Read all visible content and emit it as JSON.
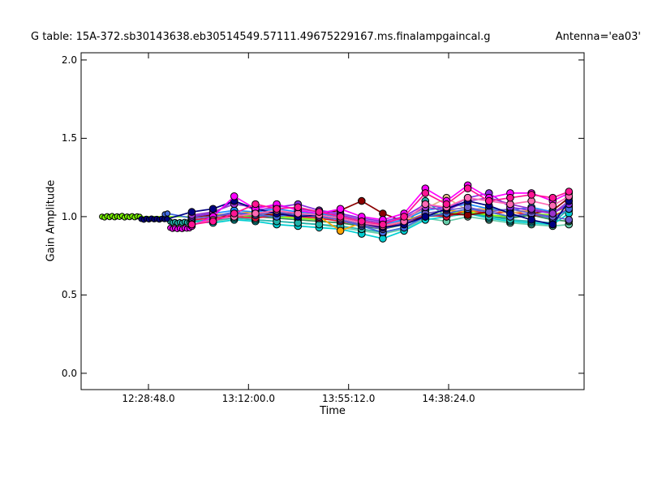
{
  "figure": {
    "title_left": "G table: 15A-372.sb30143638.eb30514549.57111.49675229167.ms.finalampgaincal.g",
    "title_right": "Antenna='ea03'",
    "background": "#ffffff",
    "frame_color": "#000000"
  },
  "chart_data": {
    "type": "line",
    "title": "G table: 15A-372.sb30143638.eb30514549.57111.49675229167.ms.finalampgaincal.g     Antenna='ea03'",
    "xlabel": "Time",
    "ylabel": "Gain Amplitude",
    "grid": false,
    "legend": "none",
    "x_axis": {
      "unit": "seconds after 12:00:00",
      "range": [
        -17,
        13014
      ],
      "ticks": [
        {
          "t": 1728,
          "label": "12:28:48.0"
        },
        {
          "t": 4320,
          "label": "13:12:00.0"
        },
        {
          "t": 6912,
          "label": "13:55:12.0"
        },
        {
          "t": 9504,
          "label": "14:38:24.0"
        }
      ]
    },
    "y_axis": {
      "range": [
        -0.104,
        2.046
      ],
      "ticks": [
        {
          "v": 0.0,
          "label": "0.0"
        },
        {
          "v": 0.5,
          "label": "0.5"
        },
        {
          "v": 1.0,
          "label": "1.0"
        },
        {
          "v": 1.5,
          "label": "1.5"
        },
        {
          "v": 2.0,
          "label": "2.0"
        }
      ]
    },
    "marker": {
      "shape": "circle",
      "edge": "#000000",
      "edge_width": 1,
      "radius": 4.3,
      "radius_dense": 3.2
    },
    "line_width": 1.7,
    "t_main": [
      2850,
      3400,
      3950,
      4500,
      5050,
      5600,
      6150,
      6700,
      7250,
      7800,
      8350,
      8900,
      9450,
      10000,
      10550,
      11100,
      11650,
      12200,
      12620
    ],
    "series": [
      {
        "name": "mediumaquamarine",
        "color": "#66CDAA",
        "y": [
          0.98,
          0.97,
          0.99,
          0.98,
          0.97,
          0.96,
          0.95,
          0.93,
          0.91,
          0.89,
          0.92,
          0.99,
          0.97,
          1.0,
          0.98,
          0.96,
          0.95,
          0.94,
          0.95
        ]
      },
      {
        "name": "seagreen",
        "color": "#2E8B57",
        "y": [
          0.99,
          1.0,
          1.01,
          1.0,
          0.99,
          0.98,
          0.97,
          0.96,
          0.94,
          0.92,
          0.95,
          1.0,
          1.01,
          1.03,
          1.0,
          0.99,
          1.01,
          0.98,
          0.97
        ]
      },
      {
        "name": "lawngreen",
        "color": "#7CFC00",
        "prefix_x": [
          525,
          590,
          655,
          720,
          785,
          850,
          915,
          980,
          1045,
          1110,
          1175,
          1240,
          1305,
          1370,
          1435,
          1500
        ],
        "prefix_y": [
          1.0,
          0.995,
          1.003,
          0.997,
          1.004,
          0.996,
          1.002,
          0.998,
          1.005,
          0.995,
          1.001,
          0.997,
          1.003,
          0.996,
          1.002,
          0.999
        ],
        "y": [
          1.0,
          1.01,
          1.0,
          1.01,
          1.0,
          0.99,
          0.98,
          0.99,
          0.96,
          0.94,
          0.97,
          1.01,
          1.02,
          1.03,
          1.01,
          1.0,
          1.02,
          1.01,
          1.04
        ]
      },
      {
        "name": "darkturquoise",
        "color": "#00CED1",
        "y": [
          0.97,
          0.96,
          0.98,
          0.97,
          0.95,
          0.94,
          0.93,
          0.92,
          0.89,
          0.86,
          0.91,
          0.98,
          1.0,
          1.02,
          0.99,
          0.97,
          0.96,
          0.95,
          1.02
        ]
      },
      {
        "name": "lightseagreen",
        "color": "#20B2AA",
        "prefix_x": [
          2290,
          2352,
          2414,
          2476,
          2538,
          2600,
          2662,
          2724,
          2790
        ],
        "prefix_y": [
          0.968,
          0.962,
          0.966,
          0.96,
          0.965,
          0.961,
          0.967,
          0.963,
          0.965
        ],
        "y": [
          0.97,
          0.98,
          0.99,
          0.98,
          0.97,
          0.96,
          0.95,
          0.94,
          0.92,
          0.9,
          0.93,
          1.1,
          1.0,
          1.02,
          1.0,
          0.98,
          0.97,
          0.96,
          1.05
        ]
      },
      {
        "name": "crimson",
        "color": "#DC143C",
        "y": [
          0.98,
          0.99,
          1.0,
          0.99,
          1.01,
          1.0,
          0.99,
          0.97,
          0.95,
          0.93,
          0.96,
          1.01,
          1.0,
          1.04,
          1.02,
          1.03,
          1.01,
          1.0,
          1.05
        ]
      },
      {
        "name": "orange",
        "color": "#FFA500",
        "y": [
          1.0,
          1.01,
          1.02,
          1.03,
          1.02,
          1.01,
          1.0,
          0.91,
          0.96,
          0.94,
          0.97,
          1.02,
          1.04,
          1.03,
          1.05,
          1.02,
          1.04,
          1.03,
          1.06
        ]
      },
      {
        "name": "burlywood",
        "color": "#DEB887",
        "y": [
          0.99,
          1.0,
          1.01,
          1.02,
          1.03,
          1.02,
          1.01,
          1.0,
          0.97,
          0.95,
          0.98,
          1.05,
          1.12,
          1.04,
          1.06,
          1.02,
          1.05,
          1.03,
          1.07
        ]
      },
      {
        "name": "darkred",
        "color": "#8B0000",
        "y": [
          1.0,
          1.01,
          1.0,
          1.02,
          1.01,
          1.03,
          1.02,
          1.04,
          1.1,
          1.02,
          0.97,
          1.0,
          1.02,
          1.01,
          1.03,
          1.0,
          1.02,
          1.04,
          1.12
        ]
      },
      {
        "name": "royalblue",
        "color": "#4169E1",
        "prefix_x": [
          2150,
          2220
        ],
        "prefix_y": [
          1.015,
          1.02
        ],
        "y": [
          0.99,
          1.0,
          1.03,
          1.01,
          1.0,
          1.02,
          1.0,
          0.98,
          0.94,
          0.9,
          0.93,
          1.0,
          1.02,
          1.05,
          1.03,
          1.0,
          1.02,
          0.99,
          1.05
        ]
      },
      {
        "name": "dodgerblue",
        "color": "#1E90FF",
        "y": [
          1.0,
          1.02,
          1.04,
          1.03,
          1.05,
          1.03,
          1.02,
          1.0,
          0.97,
          0.95,
          0.98,
          1.04,
          1.06,
          1.08,
          1.05,
          1.04,
          1.06,
          1.03,
          1.08
        ]
      },
      {
        "name": "slateblue",
        "color": "#6A5ACD",
        "y": [
          0.99,
          1.0,
          1.02,
          1.01,
          1.03,
          1.01,
          1.0,
          0.98,
          0.95,
          0.92,
          0.96,
          1.02,
          1.04,
          1.06,
          1.03,
          1.05,
          1.02,
          1.0,
          0.98
        ]
      },
      {
        "name": "blueviolet",
        "color": "#8A2BE2",
        "y": [
          1.0,
          1.02,
          1.1,
          1.04,
          1.06,
          1.08,
          1.04,
          1.02,
          0.99,
          0.97,
          1.0,
          1.08,
          1.05,
          1.12,
          1.15,
          1.06,
          1.04,
          1.02,
          1.08
        ]
      },
      {
        "name": "darkorchid",
        "color": "#9932CC",
        "y": [
          1.01,
          1.03,
          1.08,
          1.06,
          1.07,
          1.05,
          1.03,
          1.01,
          0.98,
          0.96,
          0.99,
          1.06,
          1.04,
          1.1,
          1.12,
          1.08,
          1.05,
          1.02,
          1.1
        ]
      },
      {
        "name": "navy",
        "color": "#000080",
        "prefix_x": [
          1540,
          1607,
          1674,
          1741,
          1808,
          1875,
          1942,
          2009,
          2076,
          2143,
          2210
        ],
        "prefix_y": [
          0.985,
          0.98,
          0.987,
          0.982,
          0.988,
          0.983,
          0.986,
          0.981,
          0.987,
          0.984,
          0.985
        ],
        "y": [
          1.03,
          1.05,
          1.1,
          1.05,
          1.02,
          1.0,
          1.01,
          0.99,
          0.96,
          0.93,
          0.95,
          1.0,
          1.05,
          1.1,
          1.07,
          1.02,
          0.98,
          0.95,
          1.1
        ]
      },
      {
        "name": "magenta",
        "color": "#FF00FF",
        "prefix_x": [
          2290,
          2352,
          2414,
          2476,
          2538,
          2600,
          2662,
          2724,
          2790
        ],
        "prefix_y": [
          0.928,
          0.922,
          0.926,
          0.92,
          0.925,
          0.921,
          0.927,
          0.923,
          0.925
        ],
        "y": [
          0.94,
          1.0,
          1.13,
          1.05,
          1.08,
          1.04,
          1.02,
          1.05,
          1.0,
          0.98,
          1.02,
          1.18,
          1.1,
          1.2,
          1.12,
          1.15,
          1.15,
          1.1,
          1.15
        ]
      },
      {
        "name": "hotpink",
        "color": "#FF69B4",
        "y": [
          0.95,
          0.98,
          1.0,
          1.02,
          1.04,
          1.02,
          1.01,
          0.99,
          0.96,
          0.94,
          0.97,
          1.08,
          1.06,
          1.12,
          1.1,
          1.08,
          1.1,
          1.07,
          1.13
        ]
      },
      {
        "name": "deeppink",
        "color": "#FF1493",
        "y": [
          0.95,
          0.97,
          1.02,
          1.08,
          1.05,
          1.06,
          1.03,
          1.0,
          0.97,
          0.95,
          1.0,
          1.15,
          1.08,
          1.18,
          1.1,
          1.12,
          1.14,
          1.12,
          1.16
        ]
      }
    ]
  }
}
